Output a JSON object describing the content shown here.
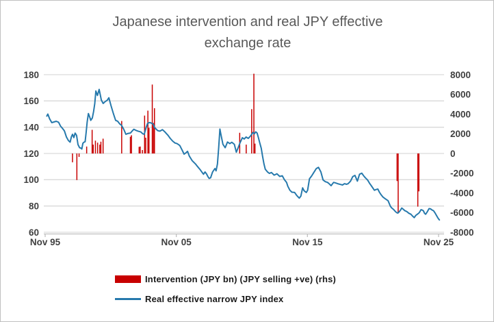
{
  "title": {
    "line1": "Japanese intervention and real JPY effective",
    "line2": "exchange rate"
  },
  "colors": {
    "bar": "#c80000",
    "line": "#2679ac",
    "grid": "#d9d9d9",
    "axis_line": "#bfbfbf",
    "tick_label": "#3f3f3f",
    "title_text": "#595959",
    "legend_text": "#1a1a1a",
    "background": "#ffffff"
  },
  "chart_data": {
    "type": "bar",
    "subtype": "combo-bar-line-dual-axis",
    "title": "Japanese intervention and real JPY effective exchange rate",
    "xlabel": "",
    "ylabel_left": "",
    "ylabel_right": "",
    "grid": true,
    "legend_position": "bottom-left",
    "x_axis": {
      "labels": [
        "Nov 95",
        "Nov 05",
        "Nov 15",
        "Nov 25"
      ],
      "label_years": [
        1995.875,
        2005.875,
        2015.875,
        2025.875
      ],
      "range_years": [
        1995.875,
        2026.2
      ]
    },
    "left_axis": {
      "ticks": [
        180,
        160,
        140,
        120,
        100,
        80,
        60
      ],
      "range": [
        60,
        180
      ],
      "series": "Real effective narrow JPY index"
    },
    "right_axis": {
      "ticks": [
        8000,
        6000,
        4000,
        2000,
        0,
        -2000,
        -4000,
        -6000,
        -8000
      ],
      "range": [
        -8000,
        8000
      ],
      "series": "Intervention (JPY bn) (JPY selling +ve) (rhs)"
    },
    "series": [
      {
        "name": "Intervention (JPY bn) (JPY selling +ve) (rhs)",
        "type": "bar",
        "axis": "right",
        "color": "#c80000",
        "points": [
          [
            "1997-12",
            -900
          ],
          [
            "1998-04",
            -2700
          ],
          [
            "1998-06",
            -350
          ],
          [
            "1999-01",
            700
          ],
          [
            "1999-06",
            2400
          ],
          [
            "1999-07",
            900
          ],
          [
            "1999-09",
            1300
          ],
          [
            "1999-11",
            1100
          ],
          [
            "2000-01",
            900
          ],
          [
            "2000-02",
            1200
          ],
          [
            "2000-04",
            1500
          ],
          [
            "2001-09",
            3300
          ],
          [
            "2002-05",
            1700
          ],
          [
            "2002-06",
            1850
          ],
          [
            "2003-01",
            675
          ],
          [
            "2003-02",
            700
          ],
          [
            "2003-04",
            350
          ],
          [
            "2003-06",
            3850
          ],
          [
            "2003-07",
            1600
          ],
          [
            "2003-09",
            4350
          ],
          [
            "2003-10",
            2600
          ],
          [
            "2004-01",
            7000
          ],
          [
            "2004-02",
            3100
          ],
          [
            "2004-03",
            4600
          ],
          [
            "2010-09",
            2100
          ],
          [
            "2011-03",
            900
          ],
          [
            "2011-08",
            4500
          ],
          [
            "2011-10",
            8100
          ],
          [
            "2011-11",
            1000
          ],
          [
            "2022-09",
            -2800
          ],
          [
            "2022-10",
            -6050
          ],
          [
            "2024-04",
            -5400
          ],
          [
            "2024-05",
            -3850
          ]
        ]
      },
      {
        "name": "Real effective narrow JPY index",
        "type": "line",
        "axis": "left",
        "color": "#2679ac",
        "points": [
          [
            1996.0,
            148.5
          ],
          [
            1996.08,
            150
          ],
          [
            1996.22,
            146.3
          ],
          [
            1996.38,
            143.5
          ],
          [
            1996.55,
            144
          ],
          [
            1996.72,
            144.5
          ],
          [
            1996.9,
            143.8
          ],
          [
            1997.05,
            140.8
          ],
          [
            1997.18,
            139.3
          ],
          [
            1997.34,
            137.2
          ],
          [
            1997.5,
            132.5
          ],
          [
            1997.65,
            129.8
          ],
          [
            1997.78,
            128.6
          ],
          [
            1997.88,
            132.8
          ],
          [
            1997.96,
            134.6
          ],
          [
            1998.06,
            132.1
          ],
          [
            1998.16,
            135.5
          ],
          [
            1998.27,
            133.8
          ],
          [
            1998.38,
            126.8
          ],
          [
            1998.5,
            124.4
          ],
          [
            1998.6,
            124.1
          ],
          [
            1998.67,
            123.4
          ],
          [
            1998.75,
            127.7
          ],
          [
            1998.84,
            128.6
          ],
          [
            1998.92,
            128.9
          ],
          [
            1999.0,
            136
          ],
          [
            1999.08,
            144
          ],
          [
            1999.17,
            150.4
          ],
          [
            1999.28,
            147.5
          ],
          [
            1999.35,
            145.2
          ],
          [
            1999.47,
            147
          ],
          [
            1999.57,
            152
          ],
          [
            1999.66,
            158
          ],
          [
            1999.74,
            167.6
          ],
          [
            1999.86,
            164.2
          ],
          [
            1999.99,
            168.8
          ],
          [
            2000.1,
            163.5
          ],
          [
            2000.16,
            160.7
          ],
          [
            2000.3,
            158.1
          ],
          [
            2000.45,
            159.5
          ],
          [
            2000.6,
            160.5
          ],
          [
            2000.73,
            162.4
          ],
          [
            2000.9,
            156.3
          ],
          [
            2001.08,
            150.2
          ],
          [
            2001.25,
            145.2
          ],
          [
            2001.4,
            144.6
          ],
          [
            2001.55,
            142.6
          ],
          [
            2001.69,
            141.5
          ],
          [
            2001.86,
            138.6
          ],
          [
            2002.03,
            134.6
          ],
          [
            2002.17,
            135.2
          ],
          [
            2002.38,
            135.6
          ],
          [
            2002.54,
            137.4
          ],
          [
            2002.64,
            138.4
          ],
          [
            2002.8,
            137.6
          ],
          [
            2002.96,
            137
          ],
          [
            2003.17,
            136.4
          ],
          [
            2003.32,
            135
          ],
          [
            2003.43,
            134.6
          ],
          [
            2003.58,
            140
          ],
          [
            2003.69,
            143
          ],
          [
            2003.85,
            143.6
          ],
          [
            2004.0,
            143
          ],
          [
            2004.12,
            142.3
          ],
          [
            2004.21,
            139.8
          ],
          [
            2004.37,
            138.2
          ],
          [
            2004.47,
            137.3
          ],
          [
            2004.63,
            137
          ],
          [
            2004.82,
            138.1
          ],
          [
            2005.0,
            136.5
          ],
          [
            2005.25,
            133.7
          ],
          [
            2005.41,
            131.5
          ],
          [
            2005.6,
            129.4
          ],
          [
            2005.77,
            128
          ],
          [
            2005.93,
            127.5
          ],
          [
            2006.14,
            126.1
          ],
          [
            2006.3,
            123
          ],
          [
            2006.47,
            119.5
          ],
          [
            2006.61,
            120.5
          ],
          [
            2006.73,
            121.6
          ],
          [
            2006.87,
            118
          ],
          [
            2007.08,
            114.6
          ],
          [
            2007.34,
            112
          ],
          [
            2007.5,
            110
          ],
          [
            2007.69,
            107.7
          ],
          [
            2007.81,
            106
          ],
          [
            2007.95,
            104.2
          ],
          [
            2008.07,
            105.9
          ],
          [
            2008.18,
            104.5
          ],
          [
            2008.28,
            102.4
          ],
          [
            2008.38,
            101
          ],
          [
            2008.49,
            101.5
          ],
          [
            2008.64,
            105.9
          ],
          [
            2008.82,
            108.5
          ],
          [
            2008.91,
            106.8
          ],
          [
            2009.01,
            112
          ],
          [
            2009.11,
            125
          ],
          [
            2009.2,
            138.6
          ],
          [
            2009.27,
            135
          ],
          [
            2009.43,
            127
          ],
          [
            2009.6,
            124.4
          ],
          [
            2009.78,
            128.7
          ],
          [
            2009.95,
            127.5
          ],
          [
            2010.11,
            128.5
          ],
          [
            2010.3,
            127
          ],
          [
            2010.45,
            121
          ],
          [
            2010.58,
            124
          ],
          [
            2010.73,
            128
          ],
          [
            2010.91,
            132
          ],
          [
            2011.05,
            131
          ],
          [
            2011.2,
            132.5
          ],
          [
            2011.36,
            131.5
          ],
          [
            2011.51,
            133
          ],
          [
            2011.62,
            134.5
          ],
          [
            2011.72,
            136
          ],
          [
            2011.83,
            135
          ],
          [
            2011.93,
            136.5
          ],
          [
            2012.04,
            135.5
          ],
          [
            2012.14,
            132
          ],
          [
            2012.24,
            128
          ],
          [
            2012.35,
            124
          ],
          [
            2012.45,
            118
          ],
          [
            2012.56,
            112
          ],
          [
            2012.66,
            108
          ],
          [
            2012.82,
            106
          ],
          [
            2012.97,
            104.8
          ],
          [
            2013.13,
            105.5
          ],
          [
            2013.34,
            103.5
          ],
          [
            2013.55,
            104.5
          ],
          [
            2013.76,
            102.5
          ],
          [
            2013.96,
            103
          ],
          [
            2014.12,
            100
          ],
          [
            2014.28,
            98
          ],
          [
            2014.38,
            95
          ],
          [
            2014.54,
            92
          ],
          [
            2014.69,
            90.5
          ],
          [
            2014.9,
            90.3
          ],
          [
            2015.06,
            88
          ],
          [
            2015.25,
            86
          ],
          [
            2015.37,
            87.5
          ],
          [
            2015.51,
            93.8
          ],
          [
            2015.63,
            91.5
          ],
          [
            2015.79,
            90.3
          ],
          [
            2015.89,
            92
          ],
          [
            2016.03,
            100.7
          ],
          [
            2016.2,
            103
          ],
          [
            2016.36,
            105.5
          ],
          [
            2016.55,
            108.5
          ],
          [
            2016.72,
            109.4
          ],
          [
            2016.9,
            105.9
          ],
          [
            2017.07,
            99.8
          ],
          [
            2017.24,
            98.5
          ],
          [
            2017.4,
            98
          ],
          [
            2017.5,
            97.2
          ],
          [
            2017.68,
            95.5
          ],
          [
            2017.87,
            98
          ],
          [
            2018.03,
            97.5
          ],
          [
            2018.18,
            97
          ],
          [
            2018.39,
            96.4
          ],
          [
            2018.55,
            96
          ],
          [
            2018.7,
            97
          ],
          [
            2018.86,
            96.5
          ],
          [
            2018.98,
            97
          ],
          [
            2019.16,
            98.9
          ],
          [
            2019.33,
            102.4
          ],
          [
            2019.5,
            103.3
          ],
          [
            2019.68,
            98.9
          ],
          [
            2019.85,
            104.2
          ],
          [
            2020.02,
            105
          ],
          [
            2020.16,
            103
          ],
          [
            2020.28,
            101.6
          ],
          [
            2020.46,
            99.8
          ],
          [
            2020.63,
            97
          ],
          [
            2020.74,
            95.5
          ],
          [
            2020.98,
            92
          ],
          [
            2021.1,
            92.5
          ],
          [
            2021.24,
            92.9
          ],
          [
            2021.36,
            90.5
          ],
          [
            2021.5,
            88.5
          ],
          [
            2021.62,
            87
          ],
          [
            2021.76,
            85.9
          ],
          [
            2021.88,
            85
          ],
          [
            2022.02,
            84.1
          ],
          [
            2022.11,
            82
          ],
          [
            2022.2,
            79.8
          ],
          [
            2022.3,
            78.5
          ],
          [
            2022.46,
            77.2
          ],
          [
            2022.56,
            76
          ],
          [
            2022.67,
            75
          ],
          [
            2022.77,
            74.6
          ],
          [
            2022.87,
            75.5
          ],
          [
            2022.98,
            77
          ],
          [
            2023.07,
            78.4
          ],
          [
            2023.19,
            77.5
          ],
          [
            2023.29,
            76.5
          ],
          [
            2023.4,
            76
          ],
          [
            2023.5,
            75.4
          ],
          [
            2023.6,
            74.5
          ],
          [
            2023.76,
            73.7
          ],
          [
            2023.87,
            72.5
          ],
          [
            2024.02,
            71.1
          ],
          [
            2024.13,
            72.8
          ],
          [
            2024.23,
            73.5
          ],
          [
            2024.37,
            74.6
          ],
          [
            2024.44,
            75.5
          ],
          [
            2024.54,
            77.2
          ],
          [
            2024.65,
            76.8
          ],
          [
            2024.72,
            76.3
          ],
          [
            2024.8,
            74.5
          ],
          [
            2024.89,
            73.7
          ],
          [
            2025.01,
            75.5
          ],
          [
            2025.15,
            78
          ],
          [
            2025.27,
            77.8
          ],
          [
            2025.33,
            77.2
          ],
          [
            2025.5,
            76.3
          ],
          [
            2025.59,
            75
          ],
          [
            2025.76,
            72
          ],
          [
            2025.85,
            70.5
          ],
          [
            2025.94,
            69.4
          ]
        ]
      }
    ]
  },
  "legend": {
    "items": [
      {
        "label": "Intervention (JPY bn) (JPY selling +ve) (rhs)",
        "swatch": "bar",
        "color": "#c80000"
      },
      {
        "label": "Real effective narrow JPY index",
        "swatch": "line",
        "color": "#2679ac"
      }
    ]
  }
}
